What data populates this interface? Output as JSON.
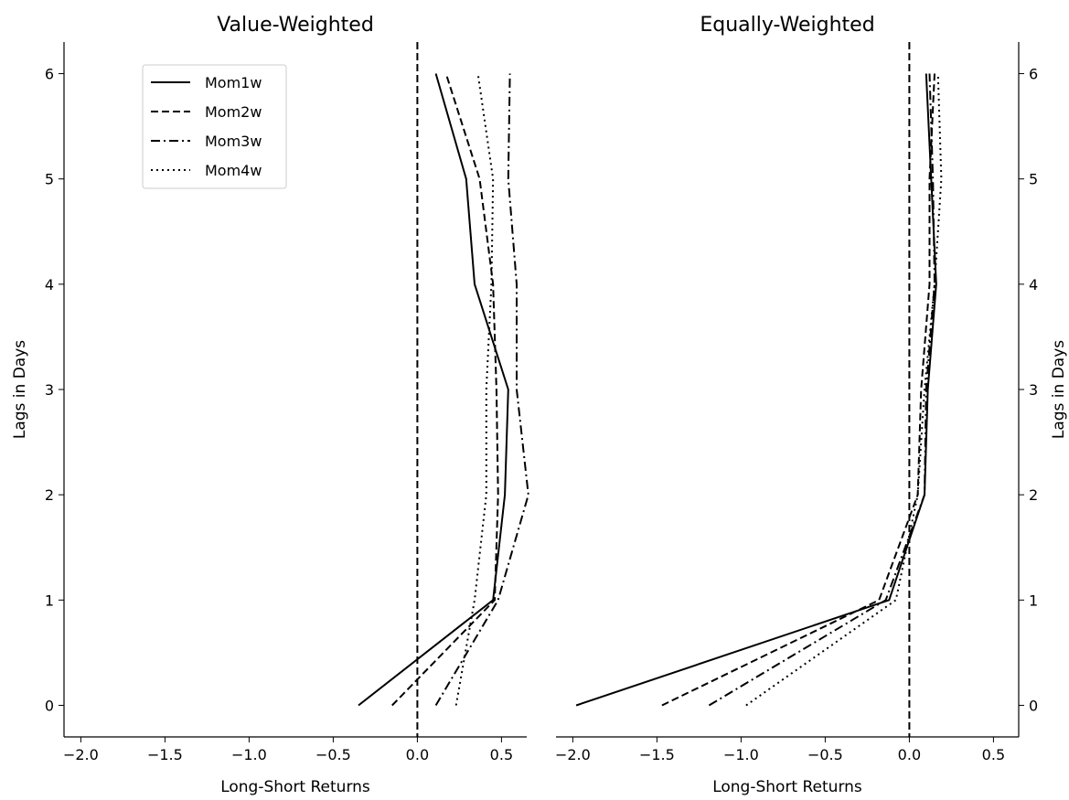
{
  "chart_data": [
    {
      "type": "line",
      "title": "Value-Weighted",
      "xlabel": "Long-Short Returns",
      "ylabel": "Lags in Days",
      "xlim": [
        -2.1,
        0.65
      ],
      "ylim": [
        -0.3,
        6.3
      ],
      "xticks": [
        -2.0,
        -1.5,
        -1.0,
        -0.5,
        0.0,
        0.5
      ],
      "xtick_labels": [
        "−2.0",
        "−1.5",
        "−1.0",
        "−0.5",
        "0.0",
        "0.5"
      ],
      "yticks": [
        0,
        1,
        2,
        3,
        4,
        5,
        6
      ],
      "ytick_labels": [
        "0",
        "1",
        "2",
        "3",
        "4",
        "5",
        "6"
      ],
      "y_axis_side": "left",
      "reference_line": {
        "x": 0.0,
        "style": "dashed"
      },
      "legend_position": "upper-left",
      "series": [
        {
          "name": "Mom1w",
          "style": "solid",
          "points": [
            [
              -0.35,
              0
            ],
            [
              0.45,
              1
            ],
            [
              0.52,
              2
            ],
            [
              0.54,
              3
            ],
            [
              0.34,
              4
            ],
            [
              0.29,
              5
            ],
            [
              0.11,
              6
            ]
          ]
        },
        {
          "name": "Mom2w",
          "style": "dashed",
          "points": [
            [
              -0.15,
              0
            ],
            [
              0.46,
              1
            ],
            [
              0.48,
              2
            ],
            [
              0.47,
              3
            ],
            [
              0.45,
              4
            ],
            [
              0.37,
              5
            ],
            [
              0.17,
              6
            ]
          ]
        },
        {
          "name": "Mom3w",
          "style": "dashdot",
          "points": [
            [
              0.11,
              0
            ],
            [
              0.48,
              1
            ],
            [
              0.66,
              2
            ],
            [
              0.59,
              3
            ],
            [
              0.59,
              4
            ],
            [
              0.54,
              5
            ],
            [
              0.55,
              6
            ]
          ]
        },
        {
          "name": "Mom4w",
          "style": "dotted",
          "points": [
            [
              0.23,
              0
            ],
            [
              0.34,
              1
            ],
            [
              0.41,
              2
            ],
            [
              0.41,
              3
            ],
            [
              0.44,
              4
            ],
            [
              0.45,
              5
            ],
            [
              0.36,
              6
            ]
          ]
        }
      ]
    },
    {
      "type": "line",
      "title": "Equally-Weighted",
      "xlabel": "Long-Short Returns",
      "ylabel": "Lags in Days",
      "xlim": [
        -2.1,
        0.65
      ],
      "ylim": [
        -0.3,
        6.3
      ],
      "xticks": [
        -2.0,
        -1.5,
        -1.0,
        -0.5,
        0.0,
        0.5
      ],
      "xtick_labels": [
        "−2.0",
        "−1.5",
        "−1.0",
        "−0.5",
        "0.0",
        "0.5"
      ],
      "yticks": [
        0,
        1,
        2,
        3,
        4,
        5,
        6
      ],
      "ytick_labels": [
        "0",
        "1",
        "2",
        "3",
        "4",
        "5",
        "6"
      ],
      "y_axis_side": "right",
      "reference_line": {
        "x": 0.0,
        "style": "dashed"
      },
      "series": [
        {
          "name": "Mom1w",
          "style": "solid",
          "points": [
            [
              -1.98,
              0
            ],
            [
              -0.12,
              1
            ],
            [
              0.09,
              2
            ],
            [
              0.11,
              3
            ],
            [
              0.16,
              4
            ],
            [
              0.13,
              5
            ],
            [
              0.1,
              6
            ]
          ]
        },
        {
          "name": "Mom2w",
          "style": "dashed",
          "points": [
            [
              -1.47,
              0
            ],
            [
              -0.18,
              1
            ],
            [
              0.05,
              2
            ],
            [
              0.07,
              3
            ],
            [
              0.12,
              4
            ],
            [
              0.12,
              5
            ],
            [
              0.15,
              6
            ]
          ]
        },
        {
          "name": "Mom3w",
          "style": "dashdot",
          "points": [
            [
              -1.19,
              0
            ],
            [
              -0.14,
              1
            ],
            [
              0.09,
              2
            ],
            [
              0.1,
              3
            ],
            [
              0.15,
              4
            ],
            [
              0.14,
              5
            ],
            [
              0.12,
              6
            ]
          ]
        },
        {
          "name": "Mom4w",
          "style": "dotted",
          "points": [
            [
              -0.97,
              0
            ],
            [
              -0.08,
              1
            ],
            [
              0.05,
              2
            ],
            [
              0.09,
              3
            ],
            [
              0.15,
              4
            ],
            [
              0.19,
              5
            ],
            [
              0.17,
              6
            ]
          ]
        }
      ]
    }
  ]
}
